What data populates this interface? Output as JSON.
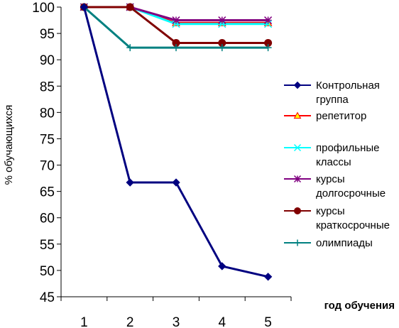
{
  "chart_data": {
    "type": "line",
    "xlabel": "год обучения",
    "ylabel": "%  обучающихся",
    "x": [
      1,
      2,
      3,
      4,
      5
    ],
    "xlim": [
      0.5,
      5.5
    ],
    "ylim": [
      45,
      100
    ],
    "y_ticks": [
      45,
      50,
      55,
      60,
      65,
      70,
      75,
      80,
      85,
      90,
      95,
      100
    ],
    "x_ticks": [
      1,
      2,
      3,
      4,
      5
    ],
    "grid": false,
    "legend_position": "right",
    "series": [
      {
        "name": "Контрольная группа",
        "name_lines": [
          "Контрольная",
          "группа"
        ],
        "values": [
          100,
          66.7,
          66.7,
          50.8,
          48.8
        ],
        "color": "#000080",
        "marker": "diamond"
      },
      {
        "name": "репетитор",
        "name_lines": [
          "репетитор"
        ],
        "values": [
          100,
          100,
          97,
          97,
          97
        ],
        "color": "#FF0000",
        "marker": "triangle",
        "marker_fill": "#FFFF00"
      },
      {
        "name": "профильные классы",
        "name_lines": [
          "профильные",
          "классы"
        ],
        "values": [
          100,
          100,
          96.8,
          96.8,
          96.8
        ],
        "color": "#00FFFF",
        "marker": "x"
      },
      {
        "name": "курсы долгосрочные",
        "name_lines": [
          "курсы",
          "долгосрочные"
        ],
        "values": [
          100,
          100,
          97.5,
          97.5,
          97.5
        ],
        "color": "#800080",
        "marker": "star"
      },
      {
        "name": "курсы краткосрочные",
        "name_lines": [
          "курсы",
          "краткосрочные"
        ],
        "values": [
          100,
          100,
          93.2,
          93.2,
          93.2
        ],
        "color": "#800000",
        "marker": "circle"
      },
      {
        "name": "олимпиады",
        "name_lines": [
          "олимпиады"
        ],
        "values": [
          100,
          92.3,
          92.3,
          92.3,
          92.3
        ],
        "color": "#008080",
        "marker": "plus"
      }
    ]
  }
}
